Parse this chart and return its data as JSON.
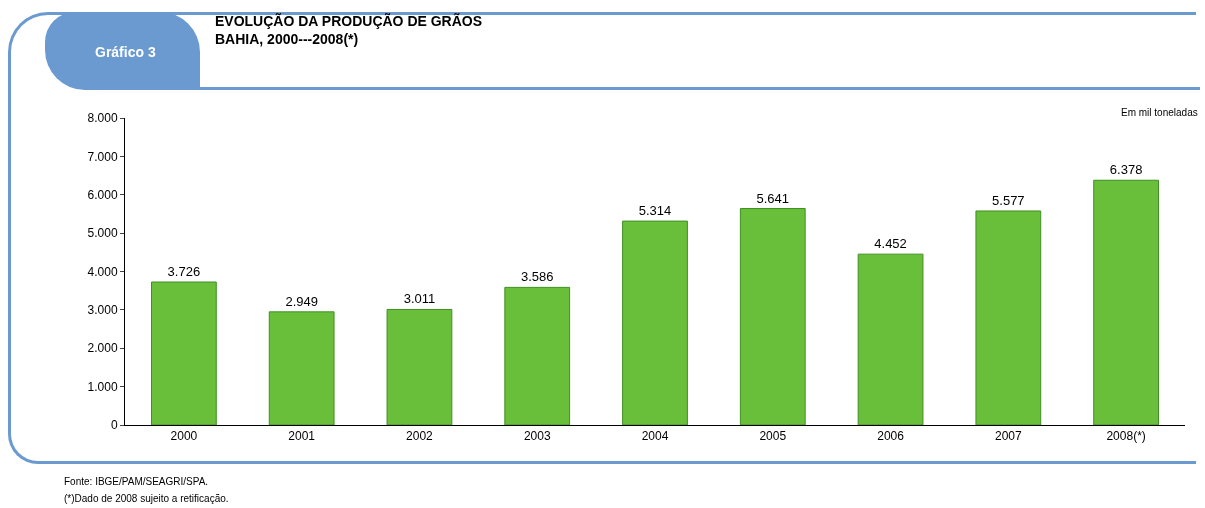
{
  "chart_data": {
    "type": "bar",
    "title": "EVOLUÇÃO DA PRODUÇÃO DE GRÃOS",
    "subtitle": "BAHIA, 2000---2008(*)",
    "categories": [
      "2000",
      "2001",
      "2002",
      "2003",
      "2004",
      "2005",
      "2006",
      "2007",
      "2008(*)"
    ],
    "values": [
      3726,
      2949,
      3011,
      3586,
      5314,
      5641,
      4452,
      5577,
      6378
    ],
    "value_labels": [
      "3.726",
      "2.949",
      "3.011",
      "3.586",
      "5.314",
      "5.641",
      "4.452",
      "5.577",
      "6.378"
    ],
    "color": "#6abf3a",
    "ylim": [
      0,
      8000
    ],
    "yticks": [
      {
        "value": 0,
        "label": "0"
      },
      {
        "value": 1000,
        "label": "1.000"
      },
      {
        "value": 2000,
        "label": "2.000"
      },
      {
        "value": 3000,
        "label": "3.000"
      },
      {
        "value": 4000,
        "label": "4.000"
      },
      {
        "value": 5000,
        "label": "5.000"
      },
      {
        "value": 6000,
        "label": "6.000"
      },
      {
        "value": 7000,
        "label": "7.000"
      },
      {
        "value": 8000,
        "label": "8.000"
      }
    ],
    "grid": false,
    "annotations": [
      "Gráfico 3",
      "Em mil toneladas",
      "Fonte: IBGE/PAM/SEAGRI/SPA.",
      "(*)Dado de 2008 sujeito a retificação."
    ]
  }
}
